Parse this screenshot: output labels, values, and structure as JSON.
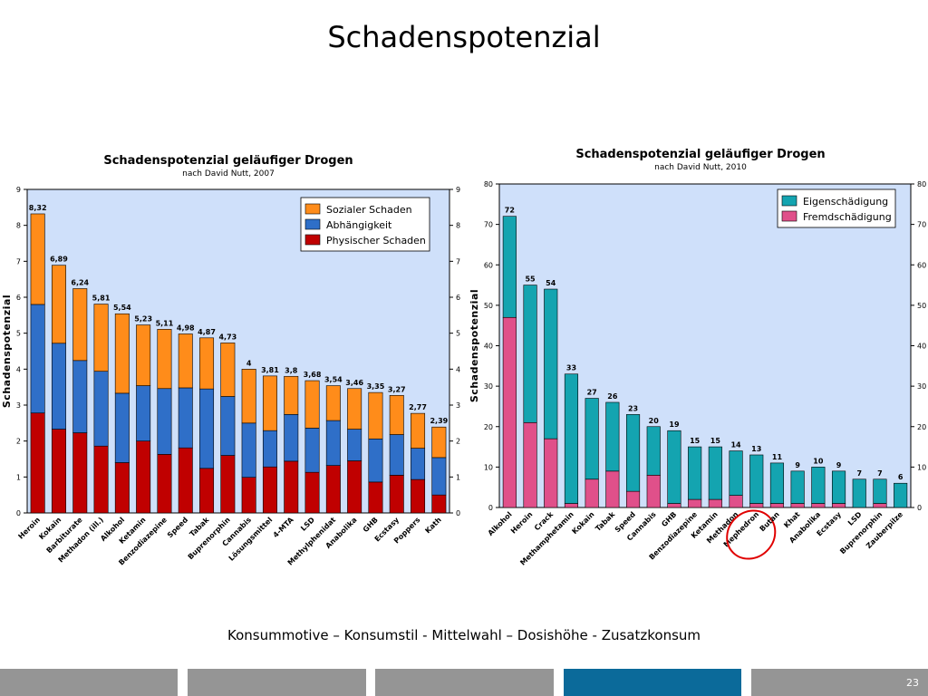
{
  "slide": {
    "title": "Schadenspotenzial",
    "caption": "Konsummotive – Konsumstil - Mittelwahl – Dosishöhe - Zusatzkonsum",
    "page_number": "23"
  },
  "footer": {
    "colors": [
      "#959595",
      "#959595",
      "#959595",
      "#0b6a9a",
      "#959595"
    ]
  },
  "chart_data": [
    {
      "type": "bar",
      "stacked": true,
      "title": "Schadenspotenzial geläufiger Drogen",
      "subtitle": "nach David Nutt, 2007",
      "ylabel": "Schadenspotenzial",
      "ylim": [
        0,
        9
      ],
      "yticks": [
        0,
        1,
        2,
        3,
        4,
        5,
        6,
        7,
        8,
        9
      ],
      "legend_position": "top-right",
      "categories": [
        "Heroin",
        "Kokain",
        "Barbiturate",
        "Methadon (ill.)",
        "Alkohol",
        "Ketamin",
        "Benzodiazepine",
        "Speed",
        "Tabak",
        "Buprenorphin",
        "Cannabis",
        "Lösungsmittel",
        "4-MTA",
        "LSD",
        "Methylphenidat",
        "Anabolika",
        "GHB",
        "Ecstasy",
        "Poppers",
        "Kath"
      ],
      "totals_labels": [
        "8,32",
        "6,89",
        "6,24",
        "5,81",
        "5,54",
        "5,23",
        "5,11",
        "4,98",
        "4,87",
        "4,73",
        "4",
        "3,81",
        "3,8",
        "3,68",
        "3,54",
        "3,46",
        "3,35",
        "3,27",
        "2,77",
        "2,39"
      ],
      "series": [
        {
          "name": "Physischer Schaden",
          "color": "#c00000",
          "values": [
            2.78,
            2.33,
            2.23,
            1.86,
            1.4,
            2.0,
            1.63,
            1.81,
            1.24,
            1.6,
            0.99,
            1.28,
            1.44,
            1.13,
            1.32,
            1.45,
            0.86,
            1.05,
            0.93,
            0.5
          ]
        },
        {
          "name": "Abhängigkeit",
          "color": "#2f6fc8",
          "values": [
            3.02,
            2.39,
            2.01,
            2.08,
            1.93,
            1.54,
            1.83,
            1.67,
            2.21,
            1.64,
            1.51,
            1.01,
            1.3,
            1.23,
            1.25,
            0.88,
            1.2,
            1.13,
            0.87,
            1.04
          ]
        },
        {
          "name": "Sozialer Schaden",
          "color": "#ff8c1a",
          "values": [
            2.52,
            2.17,
            2.0,
            1.87,
            2.21,
            1.69,
            1.65,
            1.5,
            1.42,
            1.49,
            1.5,
            1.52,
            1.06,
            1.32,
            0.97,
            1.13,
            1.29,
            1.09,
            0.97,
            0.85
          ]
        }
      ]
    },
    {
      "type": "bar",
      "stacked": true,
      "title": "Schadenspotenzial geläufiger Drogen",
      "subtitle": "nach David Nutt, 2010",
      "ylabel": "Schadenspotenzial",
      "ylim": [
        0,
        80
      ],
      "yticks": [
        0,
        10,
        20,
        30,
        40,
        50,
        60,
        70,
        80
      ],
      "legend_position": "top-right",
      "categories": [
        "Alkohol",
        "Heroin",
        "Crack",
        "Methamphetamin",
        "Kokain",
        "Tabak",
        "Speed",
        "Cannabis",
        "GHB",
        "Benzodiazepine",
        "Ketamin",
        "Methadon",
        "Mephedron",
        "Butan",
        "Khat",
        "Anabolika",
        "Ecstasy",
        "LSD",
        "Buprenorphin",
        "Zauberpilze"
      ],
      "totals_labels": [
        "72",
        "55",
        "54",
        "33",
        "27",
        "26",
        "23",
        "20",
        "19",
        "15",
        "15",
        "14",
        "13",
        "11",
        "9",
        "10",
        "9",
        "7",
        "7",
        "6"
      ],
      "highlighted_category": "Mephedron",
      "series": [
        {
          "name": "Fremdschädigung",
          "color": "#e0508a",
          "values": [
            47,
            21,
            17,
            1,
            7,
            9,
            4,
            8,
            1,
            2,
            2,
            3,
            1,
            1,
            1,
            1,
            1,
            0,
            1,
            0
          ]
        },
        {
          "name": "Eigenschädigung",
          "color": "#14a4b0",
          "values": [
            25,
            34,
            37,
            32,
            20,
            17,
            19,
            12,
            18,
            13,
            13,
            11,
            12,
            10,
            8,
            9,
            8,
            7,
            6,
            6
          ]
        }
      ]
    }
  ]
}
